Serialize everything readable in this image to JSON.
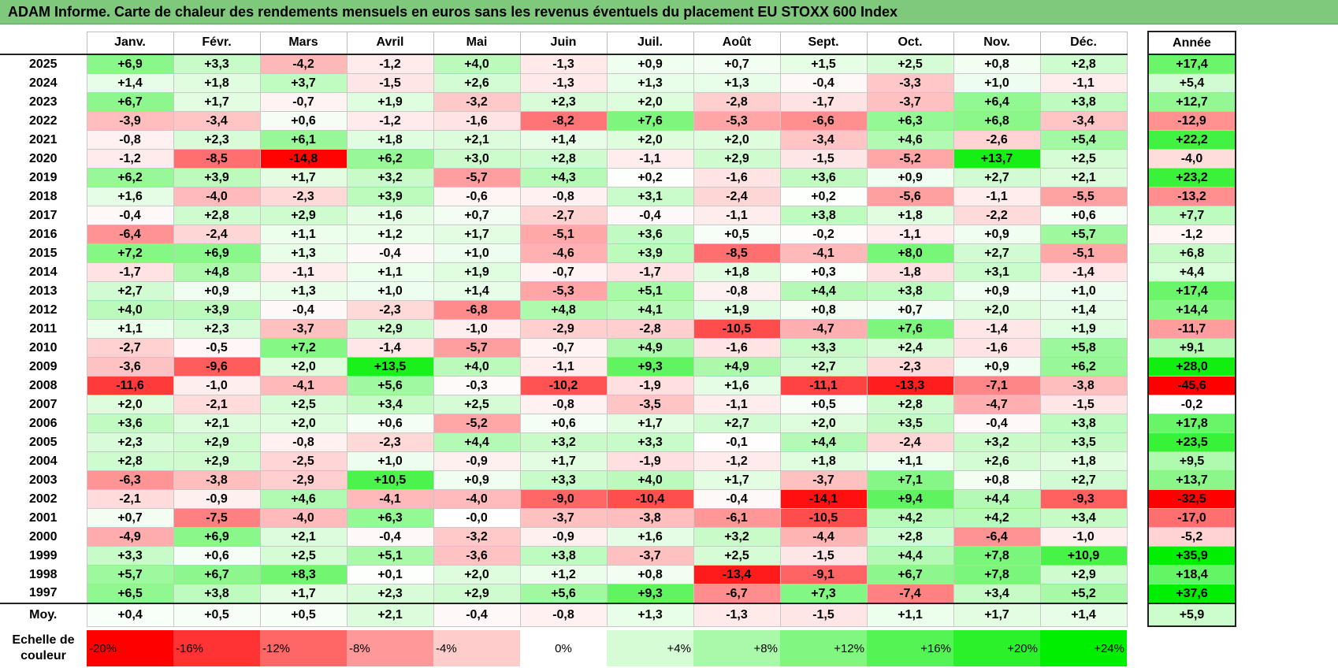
{
  "title": "ADAM Informe. Carte de chaleur des rendements mensuels en euros sans les revenus éventuels du placement EU STOXX 600 Index",
  "chart_data": {
    "type": "heatmap",
    "title": "ADAM Informe. Carte de chaleur des rendements mensuels en euros sans les revenus éventuels du placement EU STOXX 600 Index",
    "columns": [
      "Janv.",
      "Févr.",
      "Mars",
      "Avril",
      "Mai",
      "Juin",
      "Juil.",
      "Août",
      "Sept.",
      "Oct.",
      "Nov.",
      "Déc."
    ],
    "annual_header": "Année",
    "rows": [
      {
        "year": "2025",
        "values": [
          "+6,9",
          "+3,3",
          "-4,2",
          "-1,2",
          "+4,0",
          "-1,3",
          "+0,9",
          "+0,7",
          "+1,5",
          "+2,5",
          "+0,8",
          "+2,8"
        ],
        "annual": "+17,4"
      },
      {
        "year": "2024",
        "values": [
          "+1,4",
          "+1,8",
          "+3,7",
          "-1,5",
          "+2,6",
          "-1,3",
          "+1,3",
          "+1,3",
          "-0,4",
          "-3,3",
          "+1,0",
          "-1,1"
        ],
        "annual": "+5,4"
      },
      {
        "year": "2023",
        "values": [
          "+6,7",
          "+1,7",
          "-0,7",
          "+1,9",
          "-3,2",
          "+2,3",
          "+2,0",
          "-2,8",
          "-1,7",
          "-3,7",
          "+6,4",
          "+3,8"
        ],
        "annual": "+12,7"
      },
      {
        "year": "2022",
        "values": [
          "-3,9",
          "-3,4",
          "+0,6",
          "-1,2",
          "-1,6",
          "-8,2",
          "+7,6",
          "-5,3",
          "-6,6",
          "+6,3",
          "+6,8",
          "-3,4"
        ],
        "annual": "-12,9"
      },
      {
        "year": "2021",
        "values": [
          "-0,8",
          "+2,3",
          "+6,1",
          "+1,8",
          "+2,1",
          "+1,4",
          "+2,0",
          "+2,0",
          "-3,4",
          "+4,6",
          "-2,6",
          "+5,4"
        ],
        "annual": "+22,2"
      },
      {
        "year": "2020",
        "values": [
          "-1,2",
          "-8,5",
          "-14,8",
          "+6,2",
          "+3,0",
          "+2,8",
          "-1,1",
          "+2,9",
          "-1,5",
          "-5,2",
          "+13,7",
          "+2,5"
        ],
        "annual": "-4,0"
      },
      {
        "year": "2019",
        "values": [
          "+6,2",
          "+3,9",
          "+1,7",
          "+3,2",
          "-5,7",
          "+4,3",
          "+0,2",
          "-1,6",
          "+3,6",
          "+0,9",
          "+2,7",
          "+2,1"
        ],
        "annual": "+23,2"
      },
      {
        "year": "2018",
        "values": [
          "+1,6",
          "-4,0",
          "-2,3",
          "+3,9",
          "-0,6",
          "-0,8",
          "+3,1",
          "-2,4",
          "+0,2",
          "-5,6",
          "-1,1",
          "-5,5"
        ],
        "annual": "-13,2"
      },
      {
        "year": "2017",
        "values": [
          "-0,4",
          "+2,8",
          "+2,9",
          "+1,6",
          "+0,7",
          "-2,7",
          "-0,4",
          "-1,1",
          "+3,8",
          "+1,8",
          "-2,2",
          "+0,6"
        ],
        "annual": "+7,7"
      },
      {
        "year": "2016",
        "values": [
          "-6,4",
          "-2,4",
          "+1,1",
          "+1,2",
          "+1,7",
          "-5,1",
          "+3,6",
          "+0,5",
          "-0,2",
          "-1,1",
          "+0,9",
          "+5,7"
        ],
        "annual": "-1,2"
      },
      {
        "year": "2015",
        "values": [
          "+7,2",
          "+6,9",
          "+1,3",
          "-0,4",
          "+1,0",
          "-4,6",
          "+3,9",
          "-8,5",
          "-4,1",
          "+8,0",
          "+2,7",
          "-5,1"
        ],
        "annual": "+6,8"
      },
      {
        "year": "2014",
        "values": [
          "-1,7",
          "+4,8",
          "-1,1",
          "+1,1",
          "+1,9",
          "-0,7",
          "-1,7",
          "+1,8",
          "+0,3",
          "-1,8",
          "+3,1",
          "-1,4"
        ],
        "annual": "+4,4"
      },
      {
        "year": "2013",
        "values": [
          "+2,7",
          "+0,9",
          "+1,3",
          "+1,0",
          "+1,4",
          "-5,3",
          "+5,1",
          "-0,8",
          "+4,4",
          "+3,8",
          "+0,9",
          "+1,0"
        ],
        "annual": "+17,4"
      },
      {
        "year": "2012",
        "values": [
          "+4,0",
          "+3,9",
          "-0,4",
          "-2,3",
          "-6,8",
          "+4,8",
          "+4,1",
          "+1,9",
          "+0,8",
          "+0,7",
          "+2,0",
          "+1,4"
        ],
        "annual": "+14,4"
      },
      {
        "year": "2011",
        "values": [
          "+1,1",
          "+2,3",
          "-3,7",
          "+2,9",
          "-1,0",
          "-2,9",
          "-2,8",
          "-10,5",
          "-4,7",
          "+7,6",
          "-1,4",
          "+1,9"
        ],
        "annual": "-11,7"
      },
      {
        "year": "2010",
        "values": [
          "-2,7",
          "-0,5",
          "+7,2",
          "-1,4",
          "-5,7",
          "-0,7",
          "+4,9",
          "-1,6",
          "+3,3",
          "+2,4",
          "-1,6",
          "+5,8"
        ],
        "annual": "+9,1"
      },
      {
        "year": "2009",
        "values": [
          "-3,6",
          "-9,6",
          "+2,0",
          "+13,5",
          "+4,0",
          "-1,1",
          "+9,3",
          "+4,9",
          "+2,7",
          "-2,3",
          "+0,9",
          "+6,2"
        ],
        "annual": "+28,0"
      },
      {
        "year": "2008",
        "values": [
          "-11,6",
          "-1,0",
          "-4,1",
          "+5,6",
          "-0,3",
          "-10,2",
          "-1,9",
          "+1,6",
          "-11,1",
          "-13,3",
          "-7,1",
          "-3,8"
        ],
        "annual": "-45,6"
      },
      {
        "year": "2007",
        "values": [
          "+2,0",
          "-2,1",
          "+2,5",
          "+3,4",
          "+2,5",
          "-0,8",
          "-3,5",
          "-1,1",
          "+0,5",
          "+2,8",
          "-4,7",
          "-1,5"
        ],
        "annual": "-0,2"
      },
      {
        "year": "2006",
        "values": [
          "+3,6",
          "+2,1",
          "+2,0",
          "+0,6",
          "-5,2",
          "+0,6",
          "+1,7",
          "+2,7",
          "+2,0",
          "+3,5",
          "-0,4",
          "+3,8"
        ],
        "annual": "+17,8"
      },
      {
        "year": "2005",
        "values": [
          "+2,3",
          "+2,9",
          "-0,8",
          "-2,3",
          "+4,4",
          "+3,2",
          "+3,3",
          "-0,1",
          "+4,4",
          "-2,4",
          "+3,2",
          "+3,5"
        ],
        "annual": "+23,5"
      },
      {
        "year": "2004",
        "values": [
          "+2,8",
          "+2,9",
          "-2,5",
          "+1,0",
          "-0,9",
          "+1,7",
          "-1,9",
          "-1,2",
          "+1,8",
          "+1,1",
          "+2,6",
          "+1,8"
        ],
        "annual": "+9,5"
      },
      {
        "year": "2003",
        "values": [
          "-6,3",
          "-3,8",
          "-2,9",
          "+10,5",
          "+0,9",
          "+3,3",
          "+4,0",
          "+1,7",
          "-3,7",
          "+7,1",
          "+0,8",
          "+2,7"
        ],
        "annual": "+13,7"
      },
      {
        "year": "2002",
        "values": [
          "-2,1",
          "-0,9",
          "+4,6",
          "-4,1",
          "-4,0",
          "-9,0",
          "-10,4",
          "-0,4",
          "-14,1",
          "+9,4",
          "+4,4",
          "-9,3"
        ],
        "annual": "-32,5"
      },
      {
        "year": "2001",
        "values": [
          "+0,7",
          "-7,5",
          "-4,0",
          "+6,3",
          "-0,0",
          "-3,7",
          "-3,8",
          "-6,1",
          "-10,5",
          "+4,2",
          "+4,2",
          "+3,4"
        ],
        "annual": "-17,0"
      },
      {
        "year": "2000",
        "values": [
          "-4,9",
          "+6,9",
          "+2,1",
          "-0,4",
          "-3,2",
          "-0,9",
          "+1,6",
          "+3,2",
          "-4,4",
          "+2,8",
          "-6,4",
          "-1,0"
        ],
        "annual": "-5,2"
      },
      {
        "year": "1999",
        "values": [
          "+3,3",
          "+0,6",
          "+2,5",
          "+5,1",
          "-3,6",
          "+3,8",
          "-3,7",
          "+2,5",
          "-1,5",
          "+4,4",
          "+7,8",
          "+10,9"
        ],
        "annual": "+35,9"
      },
      {
        "year": "1998",
        "values": [
          "+5,7",
          "+6,7",
          "+8,3",
          "+0,1",
          "+2,0",
          "+1,2",
          "+0,8",
          "-13,4",
          "-9,1",
          "+6,7",
          "+7,8",
          "+2,9"
        ],
        "annual": "+18,4"
      },
      {
        "year": "1997",
        "values": [
          "+6,5",
          "+3,8",
          "+1,7",
          "+2,3",
          "+2,9",
          "+5,6",
          "+9,3",
          "-6,7",
          "+7,3",
          "-7,4",
          "+3,4",
          "+5,2"
        ],
        "annual": "+37,6"
      }
    ],
    "average": {
      "label": "Moy.",
      "values": [
        "+0,4",
        "+0,5",
        "+0,5",
        "+2,1",
        "-0,4",
        "-0,8",
        "+1,3",
        "-1,3",
        "-1,5",
        "+1,1",
        "+1,7",
        "+1,4"
      ],
      "annual": "+5,9"
    },
    "scale": {
      "label": "Echelle de couleur",
      "steps": [
        "-20%",
        "-16%",
        "-12%",
        "-8%",
        "-4%",
        "0%",
        "+4%",
        "+8%",
        "+12%",
        "+16%",
        "+20%",
        "+24%"
      ],
      "values": [
        -20,
        -16,
        -12,
        -8,
        -4,
        0,
        4,
        8,
        12,
        16,
        20,
        24
      ]
    },
    "colors": {
      "negative": "#ff0000",
      "neutral": "#ffffff",
      "positive": "#00ee00"
    },
    "color_saturation": {
      "monthly": 15,
      "annual": 30
    }
  }
}
